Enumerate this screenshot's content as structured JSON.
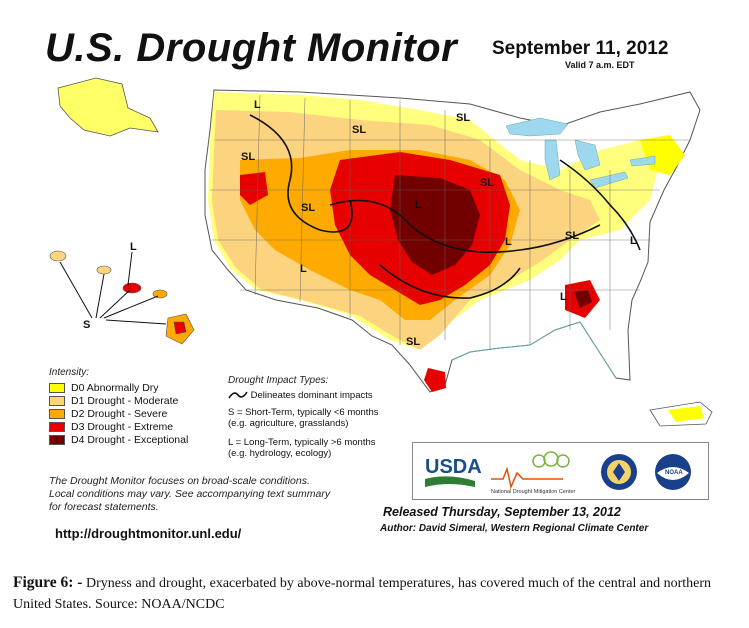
{
  "header": {
    "title": "U.S. Drought Monitor",
    "date": "September 11, 2012",
    "valid": "Valid 7 a.m. EDT"
  },
  "legend": {
    "heading": "Intensity:",
    "items": [
      {
        "label": "D0 Abnormally Dry",
        "color": "#ffff00"
      },
      {
        "label": "D1 Drought - Moderate",
        "color": "#fcd37f"
      },
      {
        "label": "D2 Drought - Severe",
        "color": "#ffaa00"
      },
      {
        "label": "D3 Drought - Extreme",
        "color": "#e60000"
      },
      {
        "label": "D4 Drought - Exceptional",
        "color": "#730000"
      }
    ]
  },
  "impact": {
    "heading": "Drought Impact Types:",
    "line": "Delineates dominant impacts",
    "s1": "S = Short-Term, typically <6 months",
    "s2": "(e.g. agriculture, grasslands)",
    "l1": "L = Long-Term, typically >6 months",
    "l2": "(e.g. hydrology, ecology)"
  },
  "map_labels": {
    "sl": "SL",
    "l": "L",
    "s": "S"
  },
  "note": {
    "line1": "The Drought Monitor focuses on broad-scale conditions.",
    "line2": "Local conditions may vary. See accompanying text summary",
    "line3": "for forecast statements."
  },
  "url": "http://droughtmonitor.unl.edu/",
  "released": "Released Thursday, September 13, 2012",
  "author": "Author: David Simeral, Western Regional Climate Center",
  "logos": {
    "usda": "USDA",
    "ndmc": "National Drought Mitigation Center",
    "noaa": "NOAA"
  },
  "caption": {
    "label": "Figure 6: -",
    "text": "Dryness and drought, exacerbated by above-normal temperatures, has covered much of the central and northern United States. Source: NOAA/NCDC"
  },
  "colors": {
    "water": "#9ed8ee",
    "background": "#ffffff"
  }
}
